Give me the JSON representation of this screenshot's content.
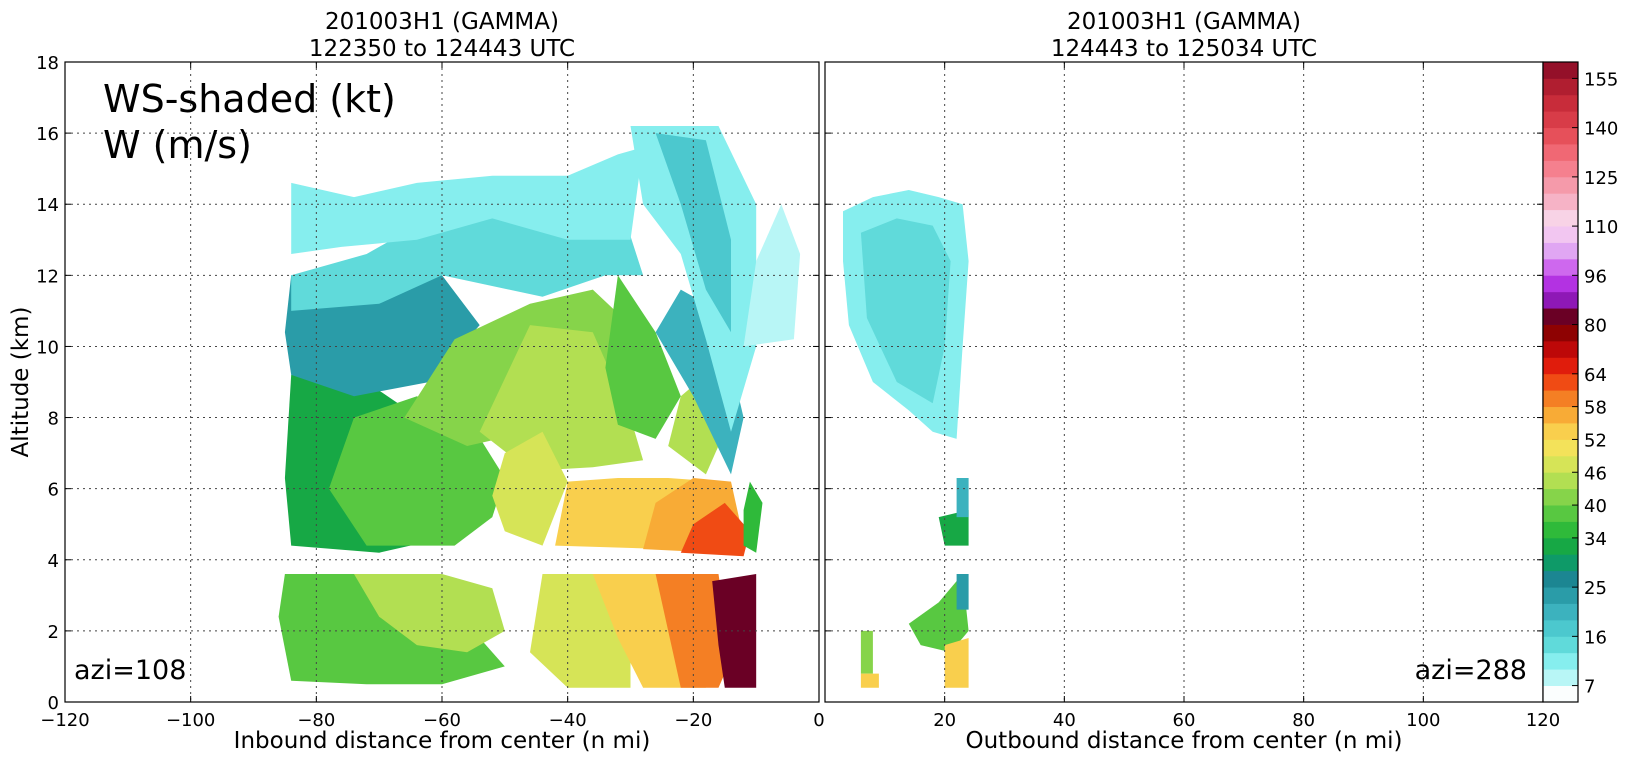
{
  "chart_data": [
    {
      "type": "heatmap",
      "title": "201003H1 (GAMMA)",
      "subtitle": "122350 to 124443 UTC",
      "xlabel": "Inbound distance from center (n mi)",
      "ylabel": "Altitude (km)",
      "xlim": [
        -120,
        0
      ],
      "ylim": [
        0,
        18
      ],
      "xticks": [
        -120,
        -100,
        -80,
        -60,
        -40,
        -20,
        0
      ],
      "yticks": [
        0,
        2,
        4,
        6,
        8,
        10,
        12,
        14,
        16,
        18
      ],
      "grid": true,
      "annotation_main": [
        "WS-shaded (kt)",
        "W (m/s)"
      ],
      "annotation_corner": "azi=108",
      "patches": [
        {
          "ws": 31,
          "points": [
            [
              -84,
              4.4
            ],
            [
              -70,
              4.2
            ],
            [
              -60,
              4.6
            ],
            [
              -56,
              6.0
            ],
            [
              -62,
              7.8
            ],
            [
              -72,
              9.0
            ],
            [
              -84,
              9.2
            ],
            [
              -85,
              6.3
            ]
          ]
        },
        {
          "ws": 37,
          "points": [
            [
              -72,
              4.4
            ],
            [
              -58,
              4.4
            ],
            [
              -52,
              5.2
            ],
            [
              -50,
              6.3
            ],
            [
              -56,
              8.0
            ],
            [
              -64,
              8.6
            ],
            [
              -74,
              8.0
            ],
            [
              -78,
              6.0
            ]
          ]
        },
        {
          "ws": 22,
          "points": [
            [
              -84,
              9.2
            ],
            [
              -74,
              8.6
            ],
            [
              -62,
              9.0
            ],
            [
              -54,
              10.6
            ],
            [
              -60,
              12.0
            ],
            [
              -84,
              12.0
            ],
            [
              -85,
              10.4
            ]
          ]
        },
        {
          "ws": 40,
          "points": [
            [
              -66,
              8.0
            ],
            [
              -58,
              10.2
            ],
            [
              -46,
              11.2
            ],
            [
              -36,
              11.6
            ],
            [
              -30,
              10.6
            ],
            [
              -32,
              8.6
            ],
            [
              -36,
              7.4
            ],
            [
              -46,
              7.6
            ],
            [
              -56,
              7.2
            ]
          ]
        },
        {
          "ws": 44,
          "points": [
            [
              -54,
              7.6
            ],
            [
              -46,
              10.6
            ],
            [
              -36,
              10.4
            ],
            [
              -30,
              8.0
            ],
            [
              -28,
              6.8
            ],
            [
              -36,
              6.6
            ],
            [
              -46,
              6.5
            ]
          ]
        },
        {
          "ws": 46,
          "points": [
            [
              -50,
              4.8
            ],
            [
              -44,
              4.4
            ],
            [
              -40,
              6.2
            ],
            [
              -44,
              7.6
            ],
            [
              -50,
              7.0
            ],
            [
              -52,
              5.8
            ]
          ]
        },
        {
          "ws": 37,
          "points": [
            [
              -32,
              12.0
            ],
            [
              -26,
              10.4
            ],
            [
              -22,
              8.6
            ],
            [
              -26,
              7.4
            ],
            [
              -32,
              7.8
            ],
            [
              -34,
              9.4
            ]
          ]
        },
        {
          "ws": 52,
          "points": [
            [
              -42,
              4.4
            ],
            [
              -24,
              4.3
            ],
            [
              -16,
              4.4
            ],
            [
              -16,
              6.2
            ],
            [
              -24,
              6.3
            ],
            [
              -32,
              6.3
            ],
            [
              -40,
              6.2
            ]
          ]
        },
        {
          "ws": 56,
          "points": [
            [
              -28,
              4.3
            ],
            [
              -16,
              4.2
            ],
            [
              -12,
              4.6
            ],
            [
              -14,
              6.2
            ],
            [
              -20,
              6.3
            ],
            [
              -26,
              5.6
            ]
          ]
        },
        {
          "ws": 62,
          "points": [
            [
              -22,
              4.2
            ],
            [
              -12,
              4.1
            ],
            [
              -11,
              4.8
            ],
            [
              -15,
              5.6
            ],
            [
              -20,
              5.0
            ]
          ]
        },
        {
          "ws": 44,
          "points": [
            [
              -24,
              7.2
            ],
            [
              -18,
              6.4
            ],
            [
              -14,
              8.0
            ],
            [
              -18,
              9.2
            ],
            [
              -22,
              8.6
            ]
          ]
        },
        {
          "ws": 14,
          "points": [
            [
              -84,
              12.0
            ],
            [
              -72,
              12.6
            ],
            [
              -60,
              13.8
            ],
            [
              -48,
              14.4
            ],
            [
              -40,
              14.6
            ],
            [
              -32,
              14.2
            ],
            [
              -28,
              12.0
            ],
            [
              -34,
              12.0
            ],
            [
              -44,
              11.4
            ],
            [
              -60,
              12.0
            ],
            [
              -70,
              11.2
            ],
            [
              -84,
              11.0
            ]
          ]
        },
        {
          "ws": 10,
          "points": [
            [
              -84,
              14.6
            ],
            [
              -74,
              14.2
            ],
            [
              -64,
              14.6
            ],
            [
              -52,
              14.8
            ],
            [
              -40,
              14.8
            ],
            [
              -32,
              15.4
            ],
            [
              -28,
              15.6
            ],
            [
              -30,
              13.0
            ],
            [
              -40,
              13.0
            ],
            [
              -52,
              13.6
            ],
            [
              -64,
              13.0
            ],
            [
              -76,
              12.8
            ],
            [
              -84,
              12.6
            ]
          ]
        },
        {
          "ws": 19,
          "points": [
            [
              -22,
              11.6
            ],
            [
              -16,
              11.0
            ],
            [
              -12,
              8.0
            ],
            [
              -14,
              6.4
            ],
            [
              -20,
              8.6
            ],
            [
              -26,
              10.4
            ]
          ]
        },
        {
          "ws": 10,
          "points": [
            [
              -30,
              16.2
            ],
            [
              -16,
              16.2
            ],
            [
              -10,
              14.0
            ],
            [
              -10,
              10.0
            ],
            [
              -14,
              7.6
            ],
            [
              -18,
              10.2
            ],
            [
              -22,
              12.6
            ],
            [
              -28,
              14.0
            ]
          ]
        },
        {
          "ws": 16,
          "points": [
            [
              -26,
              16.0
            ],
            [
              -18,
              15.8
            ],
            [
              -14,
              13.0
            ],
            [
              -14,
              10.4
            ],
            [
              -18,
              11.6
            ],
            [
              -22,
              14.0
            ]
          ]
        },
        {
          "ws": 7,
          "points": [
            [
              -12,
              10.0
            ],
            [
              -4,
              10.2
            ],
            [
              -3,
              12.6
            ],
            [
              -6,
              14.0
            ],
            [
              -10,
              12.4
            ]
          ]
        },
        {
          "ws": 34,
          "points": [
            [
              -12,
              4.4
            ],
            [
              -10,
              4.2
            ],
            [
              -9,
              5.6
            ],
            [
              -11,
              6.2
            ],
            [
              -12,
              5.4
            ]
          ]
        },
        {
          "ws": 37,
          "points": [
            [
              -85,
              3.6
            ],
            [
              -72,
              3.6
            ],
            [
              -64,
              3.0
            ],
            [
              -56,
              2.2
            ],
            [
              -50,
              1.0
            ],
            [
              -60,
              0.5
            ],
            [
              -72,
              0.5
            ],
            [
              -84,
              0.6
            ],
            [
              -86,
              2.4
            ]
          ]
        },
        {
          "ws": 44,
          "points": [
            [
              -74,
              3.6
            ],
            [
              -60,
              3.6
            ],
            [
              -52,
              3.2
            ],
            [
              -50,
              2.0
            ],
            [
              -56,
              1.4
            ],
            [
              -64,
              1.6
            ],
            [
              -70,
              2.4
            ]
          ]
        },
        {
          "ws": 46,
          "points": [
            [
              -44,
              3.6
            ],
            [
              -36,
              3.6
            ],
            [
              -30,
              2.6
            ],
            [
              -30,
              0.4
            ],
            [
              -40,
              0.4
            ],
            [
              -46,
              1.4
            ]
          ]
        },
        {
          "ws": 52,
          "points": [
            [
              -36,
              3.6
            ],
            [
              -24,
              3.6
            ],
            [
              -18,
              2.4
            ],
            [
              -18,
              0.4
            ],
            [
              -28,
              0.4
            ],
            [
              -32,
              1.8
            ]
          ]
        },
        {
          "ws": 58,
          "points": [
            [
              -26,
              3.6
            ],
            [
              -16,
              3.6
            ],
            [
              -14,
              1.2
            ],
            [
              -16,
              0.4
            ],
            [
              -22,
              0.4
            ],
            [
              -24,
              2.0
            ]
          ]
        },
        {
          "ws": 80,
          "points": [
            [
              -17,
              3.4
            ],
            [
              -10,
              3.6
            ],
            [
              -10,
              0.4
            ],
            [
              -15,
              0.4
            ],
            [
              -16,
              1.6
            ]
          ]
        }
      ]
    },
    {
      "type": "heatmap",
      "title": "201003H1 (GAMMA)",
      "subtitle": "124443 to 125034 UTC",
      "xlabel": "Outbound distance from center (n mi)",
      "xlim": [
        0,
        120
      ],
      "ylim": [
        0,
        18
      ],
      "xticks": [
        0,
        20,
        40,
        60,
        80,
        100,
        120
      ],
      "yticks": [
        0,
        2,
        4,
        6,
        8,
        10,
        12,
        14,
        16,
        18
      ],
      "grid": true,
      "annotation_corner": "azi=288",
      "patches": [
        {
          "ws": 10,
          "points": [
            [
              3,
              13.8
            ],
            [
              8,
              14.2
            ],
            [
              14,
              14.4
            ],
            [
              19,
              14.2
            ],
            [
              23,
              14.0
            ],
            [
              24,
              12.4
            ],
            [
              23,
              10.0
            ],
            [
              22,
              7.4
            ],
            [
              18,
              7.6
            ],
            [
              14,
              8.2
            ],
            [
              8,
              9.0
            ],
            [
              4,
              10.6
            ],
            [
              3,
              12.4
            ]
          ]
        },
        {
          "ws": 14,
          "points": [
            [
              6,
              13.2
            ],
            [
              12,
              13.6
            ],
            [
              18,
              13.4
            ],
            [
              21,
              12.4
            ],
            [
              20,
              10.0
            ],
            [
              18,
              8.4
            ],
            [
              12,
              9.0
            ],
            [
              7,
              10.8
            ]
          ]
        },
        {
          "ws": 31,
          "points": [
            [
              19,
              5.2
            ],
            [
              24,
              5.4
            ],
            [
              24,
              4.4
            ],
            [
              20,
              4.4
            ]
          ]
        },
        {
          "ws": 19,
          "points": [
            [
              22,
              6.3
            ],
            [
              24,
              6.3
            ],
            [
              24,
              5.2
            ],
            [
              22,
              5.2
            ]
          ]
        },
        {
          "ws": 37,
          "points": [
            [
              14,
              2.2
            ],
            [
              19,
              2.8
            ],
            [
              23,
              3.6
            ],
            [
              24,
              2.0
            ],
            [
              21,
              1.4
            ],
            [
              16,
              1.6
            ]
          ]
        },
        {
          "ws": 52,
          "points": [
            [
              20,
              1.6
            ],
            [
              24,
              1.8
            ],
            [
              24,
              0.4
            ],
            [
              20,
              0.4
            ]
          ]
        },
        {
          "ws": 22,
          "points": [
            [
              22,
              3.6
            ],
            [
              24,
              3.6
            ],
            [
              24,
              2.6
            ],
            [
              22,
              2.6
            ]
          ]
        },
        {
          "ws": 40,
          "points": [
            [
              6,
              2.0
            ],
            [
              8,
              2.0
            ],
            [
              8,
              0.8
            ],
            [
              6,
              0.8
            ]
          ]
        },
        {
          "ws": 52,
          "points": [
            [
              6,
              0.8
            ],
            [
              9,
              0.8
            ],
            [
              9,
              0.4
            ],
            [
              6,
              0.4
            ]
          ]
        }
      ]
    }
  ],
  "colorbar": {
    "levels": [
      4,
      7,
      10,
      13,
      16,
      19,
      22,
      25,
      28,
      31,
      34,
      37,
      40,
      43,
      46,
      49,
      52,
      55,
      58,
      61,
      64,
      70,
      75,
      80,
      85,
      90,
      96,
      101,
      106,
      110,
      115,
      120,
      125,
      130,
      135,
      140,
      145,
      150,
      155,
      160
    ],
    "colors": [
      "#fbfefe",
      "#b8f6f6",
      "#86eeee",
      "#60dada",
      "#4cc8ce",
      "#3cb2be",
      "#2a9ca8",
      "#1c8692",
      "#0e9a68",
      "#17a845",
      "#2fba3a",
      "#58c841",
      "#86d44a",
      "#b2df52",
      "#d6e457",
      "#f3e25a",
      "#f9cf4d",
      "#f8ab36",
      "#f47f24",
      "#f04b14",
      "#e01c0c",
      "#bd0808",
      "#8e0202",
      "#6a0025",
      "#8e18b6",
      "#b332e2",
      "#ce68ee",
      "#e0a6f3",
      "#f2c6f1",
      "#f8d3e6",
      "#f6b3c6",
      "#f59aaa",
      "#f5808e",
      "#f06874",
      "#e6505a",
      "#d83c48",
      "#c82c3a",
      "#b01e30",
      "#941029"
    ],
    "tick_labels": [
      "7",
      "16",
      "25",
      "34",
      "40",
      "46",
      "52",
      "58",
      "64",
      "80",
      "96",
      "110",
      "125",
      "140",
      "155"
    ],
    "tick_values": [
      7,
      16,
      25,
      34,
      40,
      46,
      52,
      58,
      64,
      80,
      96,
      110,
      125,
      140,
      155
    ]
  }
}
